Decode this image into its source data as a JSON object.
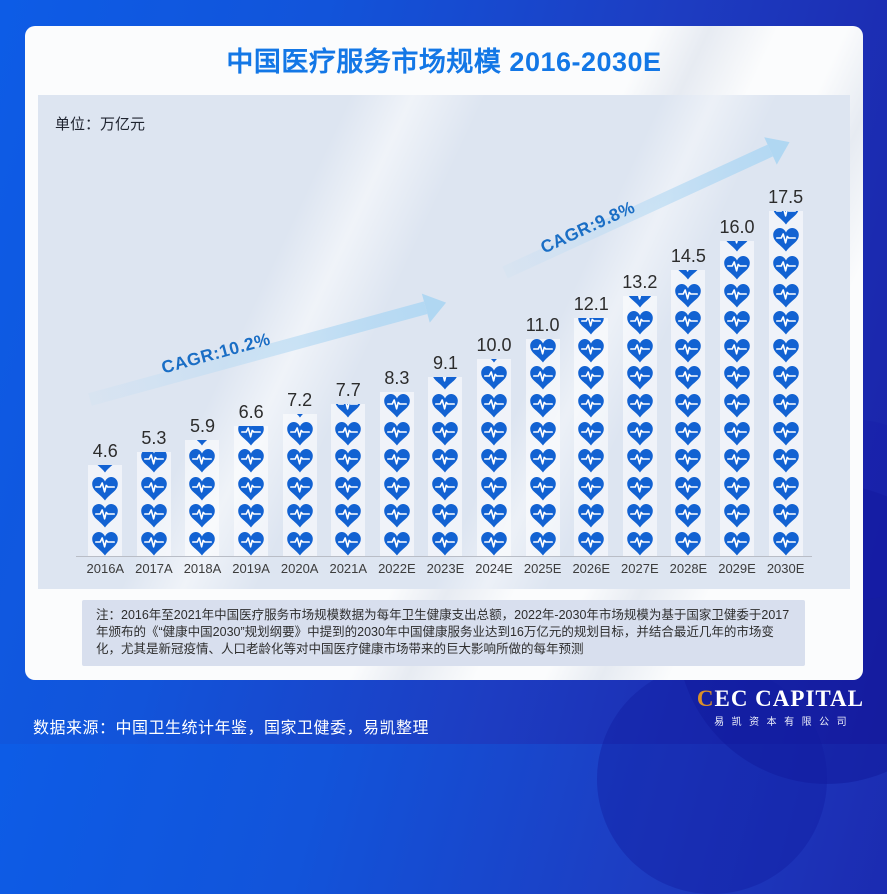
{
  "title": "中国医疗服务市场规模 2016-2030E",
  "unit_label": "单位：万亿元",
  "chart_data": {
    "type": "bar",
    "subtype": "pictogram-stacked-hearts",
    "icon": "heart-ecg-icon",
    "icon_unit_value": 1.4,
    "categories": [
      "2016A",
      "2017A",
      "2018A",
      "2019A",
      "2020A",
      "2021A",
      "2022E",
      "2023E",
      "2024E",
      "2025E",
      "2026E",
      "2027E",
      "2028E",
      "2029E",
      "2030E"
    ],
    "values": [
      4.6,
      5.3,
      5.9,
      6.6,
      7.2,
      7.7,
      8.3,
      9.1,
      10.0,
      11.0,
      12.1,
      13.2,
      14.5,
      16.0,
      17.5
    ],
    "title": "中国医疗服务市场规模 2016-2030E",
    "ylabel": "万亿元",
    "grid": false,
    "legend": false,
    "annotations": [
      {
        "label": "CAGR:10.2%",
        "span": [
          "2016A",
          "2022E"
        ]
      },
      {
        "label": "CAGR:9.8%",
        "span": [
          "2023E",
          "2030E"
        ]
      }
    ]
  },
  "note": "注：2016年至2021年中国医疗服务市场规模数据为每年卫生健康支出总额，2022年-2030年市场规模为基于国家卫健委于2017年颁布的《“健康中国2030”规划纲要》中提到的2030年中国健康服务业达到16万亿元的规划目标，并结合最近几年的市场变化，尤其是新冠疫情、人口老龄化等对中国医疗健康市场带来的巨大影响所做的每年预测",
  "footer": {
    "source": "数据来源：中国卫生统计年鉴，国家卫健委，易凯整理",
    "logo": {
      "first_letter": "C",
      "rest": "EC CAPITAL",
      "subtitle": "易凯资本有限公司"
    }
  },
  "colors": {
    "heart_blue": "#1262d2",
    "title_blue": "#1377e6",
    "cagr_text": "#1a6ec5",
    "arrow_fill": "#b0d7f2",
    "logo_accent_orange": "#d98f2b",
    "plot_background": "#dde5f1",
    "note_background": "#d8dfee"
  }
}
